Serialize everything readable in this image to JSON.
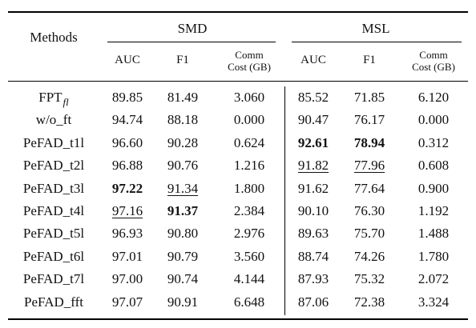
{
  "header": {
    "methods": "Methods",
    "groups": [
      "SMD",
      "MSL"
    ],
    "columns": [
      "AUC",
      "F1",
      "Comm\nCost (GB)",
      "AUC",
      "F1",
      "Comm\nCost (GB)"
    ]
  },
  "rows": [
    {
      "method": "FPT",
      "method_sub": "fl",
      "cells": [
        "89.85",
        "81.49",
        "3.060",
        "85.52",
        "71.85",
        "6.120"
      ]
    },
    {
      "method": "w/o_ft",
      "cells": [
        "94.74",
        "88.18",
        "0.000",
        "90.47",
        "76.17",
        "0.000"
      ]
    },
    {
      "method": "PeFAD_t1l",
      "cells": [
        "96.60",
        "90.28",
        "0.624",
        "92.61",
        "78.94",
        "0.312"
      ]
    },
    {
      "method": "PeFAD_t2l",
      "cells": [
        "96.88",
        "90.76",
        "1.216",
        "91.82",
        "77.96",
        "0.608"
      ]
    },
    {
      "method": "PeFAD_t3l",
      "cells": [
        "97.22",
        "91.34",
        "1.800",
        "91.62",
        "77.64",
        "0.900"
      ]
    },
    {
      "method": "PeFAD_t4l",
      "cells": [
        "97.16",
        "91.37",
        "2.384",
        "90.10",
        "76.30",
        "1.192"
      ]
    },
    {
      "method": "PeFAD_t5l",
      "cells": [
        "96.93",
        "90.80",
        "2.976",
        "89.63",
        "75.70",
        "1.488"
      ]
    },
    {
      "method": "PeFAD_t6l",
      "cells": [
        "97.01",
        "90.79",
        "3.560",
        "88.74",
        "74.26",
        "1.780"
      ]
    },
    {
      "method": "PeFAD_t7l",
      "cells": [
        "97.00",
        "90.74",
        "4.144",
        "87.93",
        "75.32",
        "2.072"
      ]
    },
    {
      "method": "PeFAD_fft",
      "cells": [
        "97.07",
        "90.91",
        "6.648",
        "87.06",
        "72.38",
        "3.324"
      ]
    }
  ],
  "bold_cells": [
    [
      4,
      0
    ],
    [
      5,
      1
    ],
    [
      2,
      3
    ],
    [
      2,
      4
    ]
  ],
  "underlined_cells": [
    [
      5,
      0
    ],
    [
      4,
      1
    ],
    [
      3,
      3
    ],
    [
      3,
      4
    ]
  ]
}
